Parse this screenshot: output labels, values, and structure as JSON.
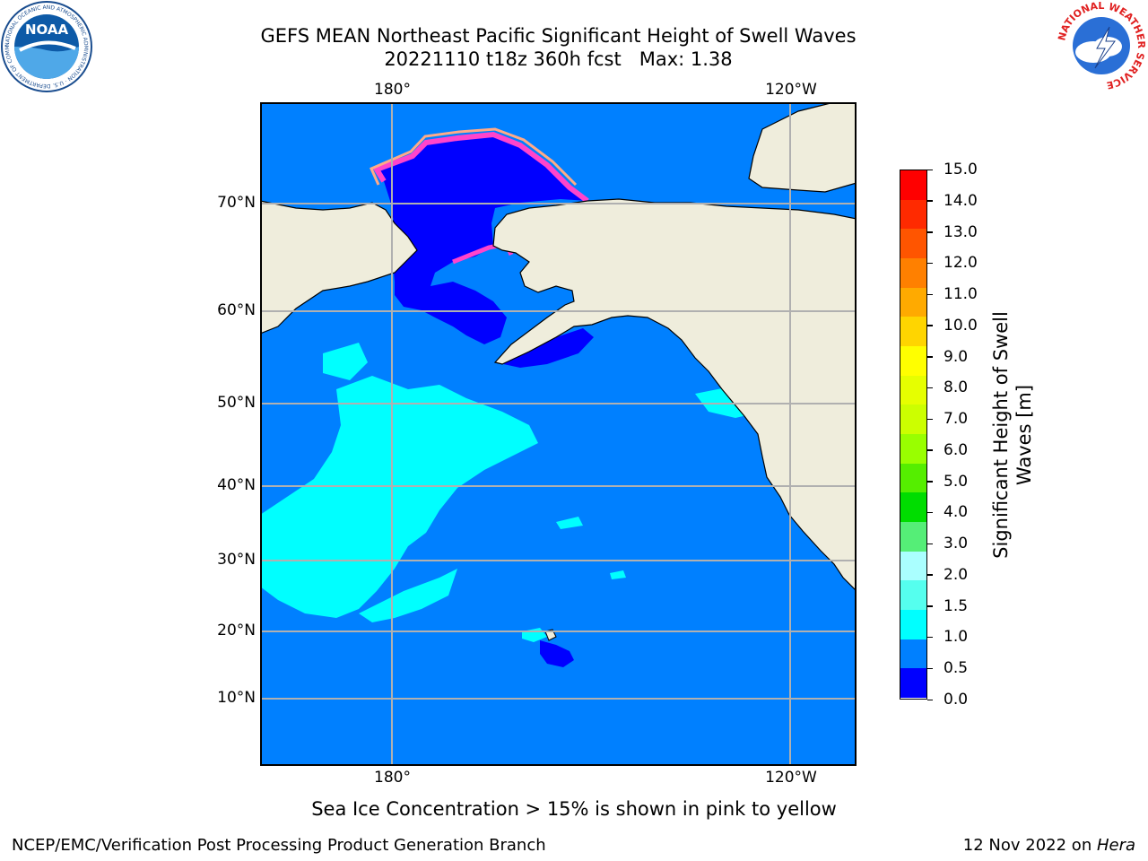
{
  "header": {
    "title_line1": "GEFS MEAN Northeast Pacific Significant Height of Swell Waves",
    "title_line2": "20221110 t18z 360h fcst   Max: 1.38"
  },
  "logos": {
    "noaa_text": "NOAA",
    "noaa_ring_text": "NATIONAL OCEANIC AND ATMOSPHERIC ADMINISTRATION · U.S. DEPARTMENT OF COMMERCE ·",
    "nws_ring_text": "NATIONAL WEATHER SERVICE"
  },
  "map": {
    "lon_labels": [
      "180°",
      "120°W"
    ],
    "lat_labels": [
      "70°N",
      "60°N",
      "50°N",
      "40°N",
      "30°N",
      "20°N",
      "10°N"
    ],
    "colors": {
      "land": "#efeddc",
      "ocean_default": "#0080ff",
      "ice_pink": "#ff44cc",
      "ice_peach": "#ffaa88",
      "ice_yellow": "#ffdd00",
      "gridline": "#b0b0b0"
    }
  },
  "colorbar": {
    "label": "Significant Height of Swell Waves [m]",
    "ticks": [
      "15.0",
      "14.0",
      "13.0",
      "12.0",
      "11.0",
      "10.0",
      "9.0",
      "8.0",
      "7.0",
      "6.0",
      "5.0",
      "4.0",
      "3.0",
      "2.0",
      "1.5",
      "1.0",
      "0.5",
      "0.0"
    ],
    "colors_top_to_bottom": [
      "#ff0000",
      "#ff2a00",
      "#ff5500",
      "#ff8000",
      "#ffaa00",
      "#ffd500",
      "#ffff00",
      "#e6ff00",
      "#ccff00",
      "#99ff00",
      "#55ee00",
      "#00dd00",
      "#55ee77",
      "#aaffff",
      "#55ffee",
      "#00ffff",
      "#0080ff",
      "#0000ff"
    ]
  },
  "caption": "Sea Ice Concentration > 15% is shown in pink to yellow",
  "footer": {
    "left": "NCEP/EMC/Verification Post Processing Product Generation Branch",
    "right_prefix": "12 Nov 2022 on ",
    "right_machine": "Hera"
  }
}
